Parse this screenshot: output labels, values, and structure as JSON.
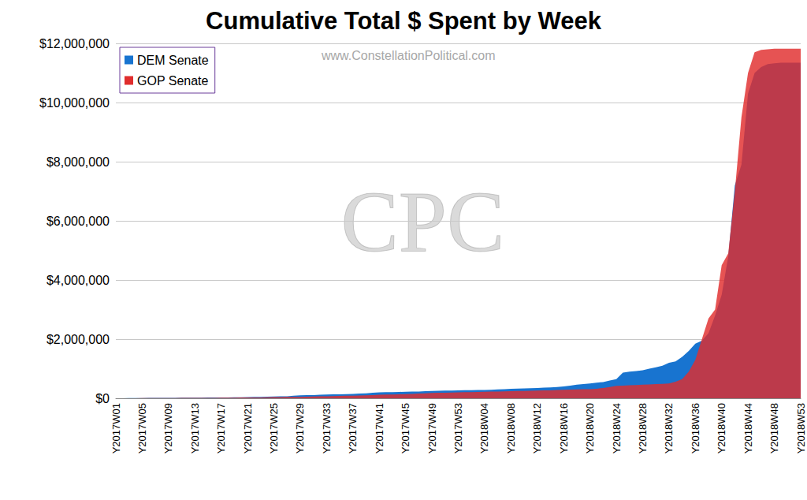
{
  "chart_data": {
    "type": "area",
    "title": "Cumulative Total $ Spent by Week",
    "annotations": [
      {
        "text": "www.ConstellationPolitical.com"
      },
      {
        "text": "CPC"
      }
    ],
    "categories": [
      "Y2017W01",
      null,
      null,
      null,
      "Y2017W05",
      null,
      null,
      null,
      "Y2017W09",
      null,
      null,
      null,
      "Y2017W13",
      null,
      null,
      null,
      "Y2017W17",
      null,
      null,
      null,
      "Y2017W21",
      null,
      null,
      null,
      "Y2017W25",
      null,
      null,
      null,
      "Y2017W29",
      null,
      null,
      null,
      "Y2017W33",
      null,
      null,
      null,
      "Y2017W37",
      null,
      null,
      null,
      "Y2017W41",
      null,
      null,
      null,
      "Y2017W45",
      null,
      null,
      null,
      "Y2017W49",
      null,
      null,
      null,
      "Y2017W53",
      null,
      null,
      null,
      "Y2018W04",
      null,
      null,
      null,
      "Y2018W08",
      null,
      null,
      null,
      "Y2018W12",
      null,
      null,
      null,
      "Y2018W16",
      null,
      null,
      null,
      "Y2018W20",
      null,
      null,
      null,
      "Y2018W24",
      null,
      null,
      null,
      "Y2018W28",
      null,
      null,
      null,
      "Y2018W32",
      null,
      null,
      null,
      "Y2018W36",
      null,
      null,
      null,
      "Y2018W40",
      null,
      null,
      null,
      "Y2018W44",
      null,
      null,
      null,
      "Y2018W48",
      null,
      null,
      null,
      "Y2018W53"
    ],
    "series": [
      {
        "name": "DEM Senate",
        "color": "#1874d0",
        "values": [
          0,
          2000,
          4000,
          6000,
          10000,
          11000,
          12000,
          14000,
          15000,
          16000,
          17000,
          18000,
          20000,
          22000,
          24000,
          26000,
          28000,
          30000,
          32000,
          35000,
          40000,
          45000,
          50000,
          55000,
          60000,
          65000,
          70000,
          85000,
          100000,
          105000,
          110000,
          120000,
          130000,
          132000,
          135000,
          140000,
          150000,
          160000,
          170000,
          185000,
          200000,
          205000,
          210000,
          215000,
          220000,
          225000,
          230000,
          240000,
          250000,
          255000,
          258000,
          262000,
          270000,
          272000,
          275000,
          278000,
          280000,
          290000,
          300000,
          310000,
          320000,
          330000,
          335000,
          340000,
          350000,
          360000,
          370000,
          380000,
          400000,
          430000,
          460000,
          480000,
          500000,
          530000,
          550000,
          600000,
          650000,
          870000,
          900000,
          920000,
          950000,
          1000000,
          1050000,
          1100000,
          1200000,
          1250000,
          1400000,
          1600000,
          1850000,
          1950000,
          2200000,
          2800000,
          3500000,
          4800000,
          7200000,
          7900000,
          10300000,
          11000000,
          11200000,
          11300000,
          11330000,
          11350000,
          11350000,
          11350000,
          11350000
        ]
      },
      {
        "name": "GOP Senate",
        "color": "#e02d2d",
        "values": [
          0,
          1000,
          2000,
          3000,
          5000,
          6000,
          7000,
          8000,
          9000,
          10000,
          11000,
          12000,
          13000,
          14000,
          15000,
          16000,
          18000,
          20000,
          22000,
          24000,
          26000,
          28000,
          30000,
          35000,
          40000,
          42000,
          45000,
          48000,
          50000,
          55000,
          60000,
          65000,
          70000,
          75000,
          80000,
          85000,
          90000,
          95000,
          100000,
          110000,
          120000,
          125000,
          130000,
          135000,
          140000,
          150000,
          160000,
          170000,
          180000,
          185000,
          190000,
          195000,
          200000,
          205000,
          210000,
          215000,
          220000,
          225000,
          230000,
          235000,
          240000,
          245000,
          250000,
          255000,
          260000,
          265000,
          270000,
          280000,
          290000,
          295000,
          300000,
          305000,
          310000,
          320000,
          350000,
          380000,
          420000,
          430000,
          440000,
          450000,
          460000,
          470000,
          480000,
          490000,
          500000,
          560000,
          650000,
          900000,
          1300000,
          2000000,
          2700000,
          3000000,
          4500000,
          4900000,
          7000000,
          9500000,
          11000000,
          11700000,
          11780000,
          11800000,
          11820000,
          11820000,
          11820000,
          11820000,
          11820000
        ]
      }
    ],
    "ylim": [
      0,
      12000000
    ],
    "yticks": [
      {
        "value": 0,
        "label": "$0"
      },
      {
        "value": 2000000,
        "label": "$2,000,000"
      },
      {
        "value": 4000000,
        "label": "$4,000,000"
      },
      {
        "value": 6000000,
        "label": "$6,000,000"
      },
      {
        "value": 8000000,
        "label": "$8,000,000"
      },
      {
        "value": 10000000,
        "label": "$10,000,000"
      },
      {
        "value": 12000000,
        "label": "$12,000,000"
      }
    ],
    "grid": true,
    "legend": "upper left"
  }
}
